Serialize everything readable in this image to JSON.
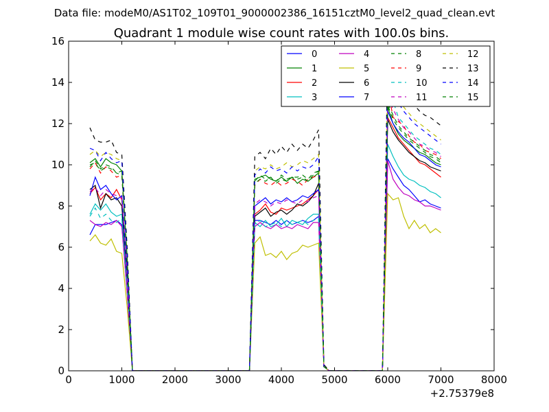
{
  "suptitle": "Data file: modeM0/AS1T02_109T01_9000002386_16151cztM0_level2_quad_clean.evt",
  "chart_data": {
    "type": "line",
    "title": "Quadrant 1 module wise count rates with 100.0s bins.",
    "xlabel": "",
    "ylabel": "",
    "x_offset_label": "+2.75379e8",
    "xlim": [
      0,
      8000
    ],
    "ylim": [
      0,
      16
    ],
    "xticks": [
      0,
      1000,
      2000,
      3000,
      4000,
      5000,
      6000,
      7000,
      8000
    ],
    "yticks": [
      0,
      2,
      4,
      6,
      8,
      10,
      12,
      14,
      16
    ],
    "grid": false,
    "legend_position": "top-right",
    "legend_columns": 4,
    "x": [
      400,
      500,
      600,
      700,
      800,
      900,
      1000,
      1100,
      1200,
      1300,
      1400,
      1500,
      1600,
      1700,
      1800,
      1900,
      2000,
      2100,
      2200,
      2300,
      2400,
      2500,
      2600,
      2700,
      2800,
      2900,
      3000,
      3100,
      3200,
      3300,
      3400,
      3500,
      3600,
      3700,
      3800,
      3900,
      4000,
      4100,
      4200,
      4300,
      4400,
      4500,
      4600,
      4700,
      4800,
      4900,
      5000,
      5100,
      5200,
      5300,
      5400,
      5500,
      5600,
      5700,
      5800,
      5900,
      6000,
      6100,
      6200,
      6300,
      6400,
      6500,
      6600,
      6700,
      6800,
      6900,
      7000
    ],
    "series": [
      {
        "name": "0",
        "color": "#0000ff",
        "dash": "solid",
        "values": [
          6.6,
          7.1,
          7.1,
          7.1,
          7.2,
          7.3,
          7.1,
          3.8,
          0,
          0,
          0,
          0,
          0,
          0,
          0,
          0,
          0,
          0,
          0,
          0,
          0,
          0,
          0,
          0,
          0,
          0,
          0,
          0,
          0,
          0,
          0,
          7.3,
          7.3,
          7.2,
          7.1,
          7.3,
          7.1,
          7.3,
          7.1,
          7.2,
          7.3,
          7.2,
          7.3,
          7.5,
          0.2,
          0,
          0,
          0,
          0,
          0,
          0,
          0,
          0,
          0,
          0,
          0,
          10.3,
          9.8,
          9.4,
          9.0,
          8.8,
          8.5,
          8.2,
          8.3,
          8.1,
          8.0,
          7.9
        ]
      },
      {
        "name": "1",
        "color": "#008000",
        "dash": "solid",
        "values": [
          10.1,
          10.3,
          9.9,
          10.3,
          10.1,
          10.0,
          9.7,
          5.5,
          0,
          0,
          0,
          0,
          0,
          0,
          0,
          0,
          0,
          0,
          0,
          0,
          0,
          0,
          0,
          0,
          0,
          0,
          0,
          0,
          0,
          0,
          0,
          9.3,
          9.4,
          9.5,
          9.3,
          9.2,
          9.4,
          9.2,
          9.4,
          9.1,
          9.3,
          9.2,
          9.4,
          9.6,
          0.2,
          0,
          0,
          0,
          0,
          0,
          0,
          0,
          0,
          0,
          0,
          0,
          12.8,
          12.0,
          11.5,
          11.2,
          11.0,
          10.8,
          10.6,
          10.5,
          10.3,
          10.1,
          10.0
        ]
      },
      {
        "name": "2",
        "color": "#ff0000",
        "dash": "solid",
        "values": [
          8.6,
          8.9,
          8.3,
          8.6,
          8.4,
          8.8,
          8.3,
          4.7,
          0,
          0,
          0,
          0,
          0,
          0,
          0,
          0,
          0,
          0,
          0,
          0,
          0,
          0,
          0,
          0,
          0,
          0,
          0,
          0,
          0,
          0,
          0,
          7.6,
          7.8,
          8.1,
          7.7,
          7.6,
          7.9,
          7.8,
          7.9,
          8.0,
          8.1,
          8.3,
          8.5,
          8.8,
          0.2,
          0,
          0,
          0,
          0,
          0,
          0,
          0,
          0,
          0,
          0,
          0,
          12.3,
          11.8,
          11.3,
          11.0,
          10.7,
          10.4,
          10.1,
          10.0,
          9.8,
          9.6,
          9.4
        ]
      },
      {
        "name": "3",
        "color": "#00bfbf",
        "dash": "solid",
        "values": [
          7.6,
          8.1,
          7.8,
          8.1,
          7.7,
          7.5,
          7.6,
          4.2,
          0,
          0,
          0,
          0,
          0,
          0,
          0,
          0,
          0,
          0,
          0,
          0,
          0,
          0,
          0,
          0,
          0,
          0,
          0,
          0,
          0,
          0,
          0,
          7.2,
          7.0,
          7.3,
          7.0,
          7.1,
          7.4,
          7.0,
          7.3,
          7.2,
          7.1,
          7.4,
          7.6,
          7.6,
          0.2,
          0,
          0,
          0,
          0,
          0,
          0,
          0,
          0,
          0,
          0,
          0,
          11.0,
          10.4,
          9.9,
          9.5,
          9.3,
          9.2,
          9.0,
          8.9,
          8.7,
          8.6,
          8.4
        ]
      },
      {
        "name": "4",
        "color": "#bf00bf",
        "dash": "solid",
        "values": [
          7.3,
          7.1,
          7.0,
          7.2,
          7.1,
          7.3,
          7.0,
          3.8,
          0,
          0,
          0,
          0,
          0,
          0,
          0,
          0,
          0,
          0,
          0,
          0,
          0,
          0,
          0,
          0,
          0,
          0,
          0,
          0,
          0,
          0,
          0,
          7.0,
          7.2,
          7.0,
          6.9,
          7.1,
          6.9,
          7.0,
          6.9,
          7.1,
          7.0,
          6.9,
          7.2,
          7.2,
          0.2,
          0,
          0,
          0,
          0,
          0,
          0,
          0,
          0,
          0,
          0,
          0,
          10.2,
          9.3,
          8.9,
          8.6,
          8.5,
          8.3,
          8.2,
          8.0,
          8.0,
          7.9,
          7.8
        ]
      },
      {
        "name": "5",
        "color": "#bfbf00",
        "dash": "solid",
        "values": [
          6.3,
          6.6,
          6.2,
          6.1,
          6.4,
          5.8,
          5.7,
          3.1,
          0,
          0,
          0,
          0,
          0,
          0,
          0,
          0,
          0,
          0,
          0,
          0,
          0,
          0,
          0,
          0,
          0,
          0,
          0,
          0,
          0,
          0,
          0,
          6.2,
          6.5,
          5.6,
          5.7,
          5.5,
          5.8,
          5.4,
          5.7,
          5.8,
          6.1,
          6.0,
          6.1,
          6.2,
          0.2,
          0,
          0,
          0,
          0,
          0,
          0,
          0,
          0,
          0,
          0,
          0,
          8.6,
          8.3,
          8.4,
          7.5,
          6.9,
          7.3,
          6.9,
          7.1,
          6.7,
          6.9,
          6.7
        ]
      },
      {
        "name": "6",
        "color": "#000000",
        "dash": "solid",
        "values": [
          8.8,
          9.0,
          7.9,
          8.6,
          8.3,
          8.4,
          8.0,
          4.5,
          0,
          0,
          0,
          0,
          0,
          0,
          0,
          0,
          0,
          0,
          0,
          0,
          0,
          0,
          0,
          0,
          0,
          0,
          0,
          0,
          0,
          0,
          0,
          7.5,
          7.7,
          7.9,
          7.5,
          7.7,
          7.8,
          7.6,
          7.8,
          8.1,
          8.0,
          8.2,
          8.5,
          9.1,
          0.2,
          0,
          0,
          0,
          0,
          0,
          0,
          0,
          0,
          0,
          0,
          0,
          12.2,
          11.6,
          11.2,
          10.9,
          10.6,
          10.4,
          10.2,
          10.1,
          9.9,
          9.8,
          9.7
        ]
      },
      {
        "name": "7",
        "color": "#0000ff",
        "dash": "solid",
        "values": [
          8.5,
          9.4,
          8.8,
          9.0,
          8.6,
          8.3,
          8.5,
          4.8,
          0,
          0,
          0,
          0,
          0,
          0,
          0,
          0,
          0,
          0,
          0,
          0,
          0,
          0,
          0,
          0,
          0,
          0,
          0,
          0,
          0,
          0,
          0,
          8.0,
          8.2,
          8.4,
          8.1,
          8.3,
          8.2,
          8.4,
          8.2,
          8.3,
          8.5,
          8.4,
          8.6,
          8.8,
          0.2,
          0,
          0,
          0,
          0,
          0,
          0,
          0,
          0,
          0,
          0,
          0,
          12.6,
          12.0,
          11.6,
          11.3,
          11.1,
          10.8,
          10.5,
          10.4,
          10.2,
          10.0,
          9.9
        ]
      },
      {
        "name": "8",
        "color": "#008000",
        "dash": "dashed",
        "values": [
          9.9,
          10.2,
          9.8,
          10.0,
          9.9,
          9.6,
          9.7,
          5.4,
          0,
          0,
          0,
          0,
          0,
          0,
          0,
          0,
          0,
          0,
          0,
          0,
          0,
          0,
          0,
          0,
          0,
          0,
          0,
          0,
          0,
          0,
          0,
          9.2,
          9.5,
          9.3,
          9.4,
          9.2,
          9.5,
          9.3,
          9.4,
          9.4,
          9.5,
          9.3,
          9.6,
          9.7,
          0.2,
          0,
          0,
          0,
          0,
          0,
          0,
          0,
          0,
          0,
          0,
          0,
          12.9,
          12.2,
          11.8,
          11.5,
          11.2,
          11.0,
          10.8,
          10.6,
          10.4,
          10.3,
          10.1
        ]
      },
      {
        "name": "9",
        "color": "#ff0000",
        "dash": "dashed",
        "values": [
          9.8,
          10.1,
          9.6,
          9.9,
          9.7,
          9.4,
          9.5,
          5.3,
          0,
          0,
          0,
          0,
          0,
          0,
          0,
          0,
          0,
          0,
          0,
          0,
          0,
          0,
          0,
          0,
          0,
          0,
          0,
          0,
          0,
          0,
          0,
          9.0,
          9.3,
          9.1,
          9.0,
          9.2,
          9.0,
          9.1,
          9.3,
          9.2,
          9.0,
          9.3,
          9.4,
          9.5,
          0.2,
          0,
          0,
          0,
          0,
          0,
          0,
          0,
          0,
          0,
          0,
          0,
          13.7,
          12.3,
          12.1,
          11.9,
          11.4,
          11.1,
          11.0,
          10.7,
          10.6,
          10.5,
          10.3
        ]
      },
      {
        "name": "10",
        "color": "#00bfbf",
        "dash": "dashed",
        "values": [
          7.5,
          7.9,
          7.4,
          7.6,
          7.3,
          7.2,
          7.4,
          4.1,
          0,
          0,
          0,
          0,
          0,
          0,
          0,
          0,
          0,
          0,
          0,
          0,
          0,
          0,
          0,
          0,
          0,
          0,
          0,
          0,
          0,
          0,
          0,
          7.1,
          7.3,
          7.0,
          7.1,
          7.2,
          7.0,
          7.3,
          7.1,
          7.2,
          7.3,
          7.1,
          7.3,
          7.4,
          0.2,
          0,
          0,
          0,
          0,
          0,
          0,
          0,
          0,
          0,
          0,
          0,
          14.0,
          13.1,
          12.3,
          12.0,
          11.7,
          11.4,
          11.2,
          11.0,
          10.8,
          10.7,
          10.5
        ]
      },
      {
        "name": "11",
        "color": "#bf00bf",
        "dash": "dashed",
        "values": [
          8.7,
          8.9,
          8.5,
          8.8,
          8.6,
          8.5,
          8.4,
          4.6,
          0,
          0,
          0,
          0,
          0,
          0,
          0,
          0,
          0,
          0,
          0,
          0,
          0,
          0,
          0,
          0,
          0,
          0,
          0,
          0,
          0,
          0,
          0,
          8.1,
          8.3,
          8.2,
          8.0,
          8.2,
          8.1,
          8.3,
          8.2,
          8.1,
          8.3,
          8.2,
          8.4,
          8.5,
          0.2,
          0,
          0,
          0,
          0,
          0,
          0,
          0,
          0,
          0,
          0,
          0,
          13.3,
          12.7,
          12.2,
          11.8,
          11.6,
          11.3,
          11.0,
          10.9,
          10.7,
          10.6,
          10.4
        ]
      },
      {
        "name": "12",
        "color": "#bfbf00",
        "dash": "dashed",
        "values": [
          10.5,
          10.7,
          10.4,
          10.6,
          10.5,
          10.3,
          10.2,
          5.7,
          0,
          0,
          0,
          0,
          0,
          0,
          0,
          0,
          0,
          0,
          0,
          0,
          0,
          0,
          0,
          0,
          0,
          0,
          0,
          0,
          0,
          0,
          0,
          9.7,
          9.9,
          9.8,
          10.0,
          9.8,
          9.9,
          10.1,
          9.9,
          10.0,
          10.2,
          10.1,
          10.3,
          10.5,
          0.2,
          0,
          0,
          0,
          0,
          0,
          0,
          0,
          0,
          0,
          0,
          0,
          14.5,
          13.9,
          13.3,
          12.8,
          12.5,
          12.2,
          12.0,
          11.8,
          11.6,
          11.4,
          11.2
        ]
      },
      {
        "name": "13",
        "color": "#000000",
        "dash": "dashed",
        "values": [
          11.8,
          11.2,
          11.1,
          11.1,
          11.2,
          10.6,
          10.5,
          6.0,
          0,
          0,
          0,
          0,
          0,
          0,
          0,
          0,
          0,
          0,
          0,
          0,
          0,
          0,
          0,
          0,
          0,
          0,
          0,
          0,
          0,
          0,
          0,
          10.4,
          10.6,
          10.3,
          10.8,
          10.5,
          10.9,
          10.6,
          11.0,
          10.7,
          11.0,
          10.8,
          11.2,
          11.7,
          0.3,
          0,
          0,
          0,
          0,
          0,
          0,
          0,
          0,
          0,
          0,
          0,
          15.7,
          14.8,
          14.0,
          13.5,
          13.2,
          12.9,
          12.6,
          12.4,
          12.3,
          12.1,
          11.9
        ]
      },
      {
        "name": "14",
        "color": "#0000ff",
        "dash": "dashed",
        "values": [
          10.8,
          10.7,
          10.2,
          10.6,
          10.3,
          10.1,
          10.2,
          5.6,
          0,
          0,
          0,
          0,
          0,
          0,
          0,
          0,
          0,
          0,
          0,
          0,
          0,
          0,
          0,
          0,
          0,
          0,
          0,
          0,
          0,
          0,
          0,
          9.5,
          9.8,
          9.6,
          9.9,
          9.7,
          9.8,
          9.6,
          9.9,
          9.7,
          9.9,
          9.8,
          10.0,
          10.4,
          0.2,
          0,
          0,
          0,
          0,
          0,
          0,
          0,
          0,
          0,
          0,
          0,
          14.3,
          13.5,
          13.0,
          12.6,
          12.3,
          12.0,
          11.8,
          11.6,
          11.4,
          11.2,
          11.0
        ]
      },
      {
        "name": "15",
        "color": "#008000",
        "dash": "dashed",
        "values": [
          10.0,
          10.1,
          9.7,
          9.9,
          9.8,
          9.6,
          9.5,
          5.4,
          0,
          0,
          0,
          0,
          0,
          0,
          0,
          0,
          0,
          0,
          0,
          0,
          0,
          0,
          0,
          0,
          0,
          0,
          0,
          0,
          0,
          0,
          0,
          9.1,
          9.3,
          9.2,
          9.4,
          9.1,
          9.3,
          9.2,
          9.4,
          9.3,
          9.4,
          9.2,
          9.5,
          9.7,
          0.2,
          0,
          0,
          0,
          0,
          0,
          0,
          0,
          0,
          0,
          0,
          0,
          13.0,
          12.4,
          11.9,
          11.6,
          11.3,
          11.1,
          10.9,
          10.7,
          10.5,
          10.4,
          10.2
        ]
      }
    ]
  }
}
